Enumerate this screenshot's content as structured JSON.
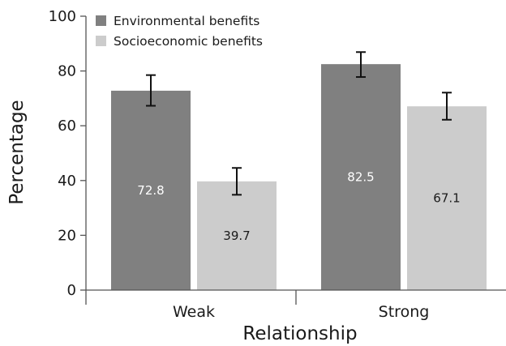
{
  "chart_data": {
    "type": "bar",
    "title": "",
    "xlabel": "Relationship",
    "ylabel": "Percentage",
    "ylim": [
      0,
      100
    ],
    "yticks": [
      0,
      20,
      40,
      60,
      80,
      100
    ],
    "categories": [
      "Weak",
      "Strong"
    ],
    "series": [
      {
        "name": "Environmental benefits",
        "values": [
          72.8,
          82.5
        ],
        "error_low": [
          67.3,
          77.8
        ],
        "error_high": [
          78.5,
          86.9
        ],
        "color": "#808080",
        "label_color": "#ffffff",
        "labels": [
          "72.8",
          "82.5"
        ]
      },
      {
        "name": "Socioeconomic benefits",
        "values": [
          39.7,
          67.1
        ],
        "error_low": [
          34.8,
          62.2
        ],
        "error_high": [
          44.6,
          72.1
        ],
        "color": "#cccccc",
        "label_color": "#1a1a1a",
        "labels": [
          "39.7",
          "67.1"
        ]
      }
    ],
    "legend_position": "top-left",
    "grid": false
  }
}
